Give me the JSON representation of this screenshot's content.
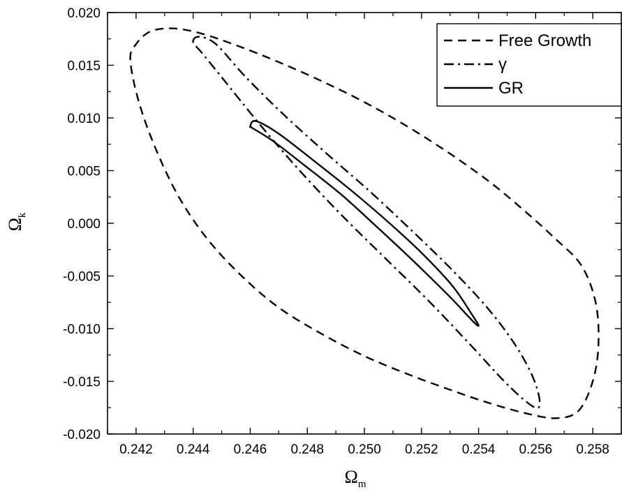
{
  "chart_data": {
    "type": "line",
    "title": "",
    "xlabel": "Ω",
    "xlabel_sub": "m",
    "ylabel": "Ω",
    "ylabel_sub": "k",
    "xlim": [
      0.241,
      0.259
    ],
    "ylim": [
      -0.02,
      0.02
    ],
    "xticks": [
      "0.242",
      "0.244",
      "0.246",
      "0.248",
      "0.250",
      "0.252",
      "0.254",
      "0.256",
      "0.258"
    ],
    "yticks": [
      "0.020",
      "0.015",
      "0.010",
      "0.005",
      "0.000",
      "-0.005",
      "-0.010",
      "-0.015",
      "-0.020"
    ],
    "grid": false,
    "legend_position": "top-right",
    "series": [
      {
        "name": "Free Growth",
        "style": "dashed",
        "color": "#000000",
        "x": [
          0.2418,
          0.242,
          0.2425,
          0.2433,
          0.2443,
          0.2456,
          0.247,
          0.2485,
          0.25,
          0.2515,
          0.253,
          0.2544,
          0.2556,
          0.2567,
          0.2576,
          0.2581,
          0.2582,
          0.258,
          0.2575,
          0.2567,
          0.2556,
          0.2543,
          0.253,
          0.2515,
          0.25,
          0.2485,
          0.247,
          0.2457,
          0.2445,
          0.2435,
          0.2427,
          0.2421,
          0.2418
        ],
        "y": [
          0.0155,
          0.017,
          0.0182,
          0.0185,
          0.018,
          0.0168,
          0.0153,
          0.0135,
          0.0115,
          0.0092,
          0.0066,
          0.0039,
          0.0012,
          -0.0015,
          -0.004,
          -0.0075,
          -0.0115,
          -0.015,
          -0.0178,
          -0.0185,
          -0.018,
          -0.017,
          -0.0158,
          -0.0143,
          -0.0126,
          -0.0105,
          -0.008,
          -0.005,
          -0.0015,
          0.0025,
          0.007,
          0.0115,
          0.0155
        ]
      },
      {
        "name": "γ",
        "style": "dash-dot",
        "color": "#000000",
        "x": [
          0.244,
          0.2442,
          0.2448,
          0.2458,
          0.2471,
          0.2486,
          0.2502,
          0.2517,
          0.2531,
          0.2543,
          0.2552,
          0.2558,
          0.2561,
          0.2561,
          0.2557,
          0.2549,
          0.2537,
          0.2523,
          0.2508,
          0.2493,
          0.2479,
          0.2467,
          0.2457,
          0.2449,
          0.2443,
          0.244
        ],
        "y": [
          0.0172,
          0.0177,
          0.017,
          0.014,
          0.0105,
          0.0068,
          0.003,
          -0.0008,
          -0.0045,
          -0.008,
          -0.0112,
          -0.014,
          -0.0162,
          -0.0175,
          -0.017,
          -0.015,
          -0.0115,
          -0.0075,
          -0.0035,
          0.0005,
          0.0045,
          0.0082,
          0.0115,
          0.0142,
          0.0162,
          0.0172
        ]
      },
      {
        "name": "GR",
        "style": "solid",
        "color": "#000000",
        "x": [
          0.246,
          0.2462,
          0.247,
          0.2482,
          0.2495,
          0.2508,
          0.252,
          0.2531,
          0.2538,
          0.254,
          0.2538,
          0.253,
          0.2518,
          0.2505,
          0.2492,
          0.2479,
          0.2468,
          0.2461,
          0.246
        ],
        "y": [
          0.0092,
          0.0097,
          0.0085,
          0.006,
          0.0032,
          0.0002,
          -0.0028,
          -0.006,
          -0.0088,
          -0.0097,
          -0.0093,
          -0.007,
          -0.0038,
          -0.0005,
          0.0027,
          0.0055,
          0.0078,
          0.009,
          0.0092
        ]
      }
    ]
  }
}
